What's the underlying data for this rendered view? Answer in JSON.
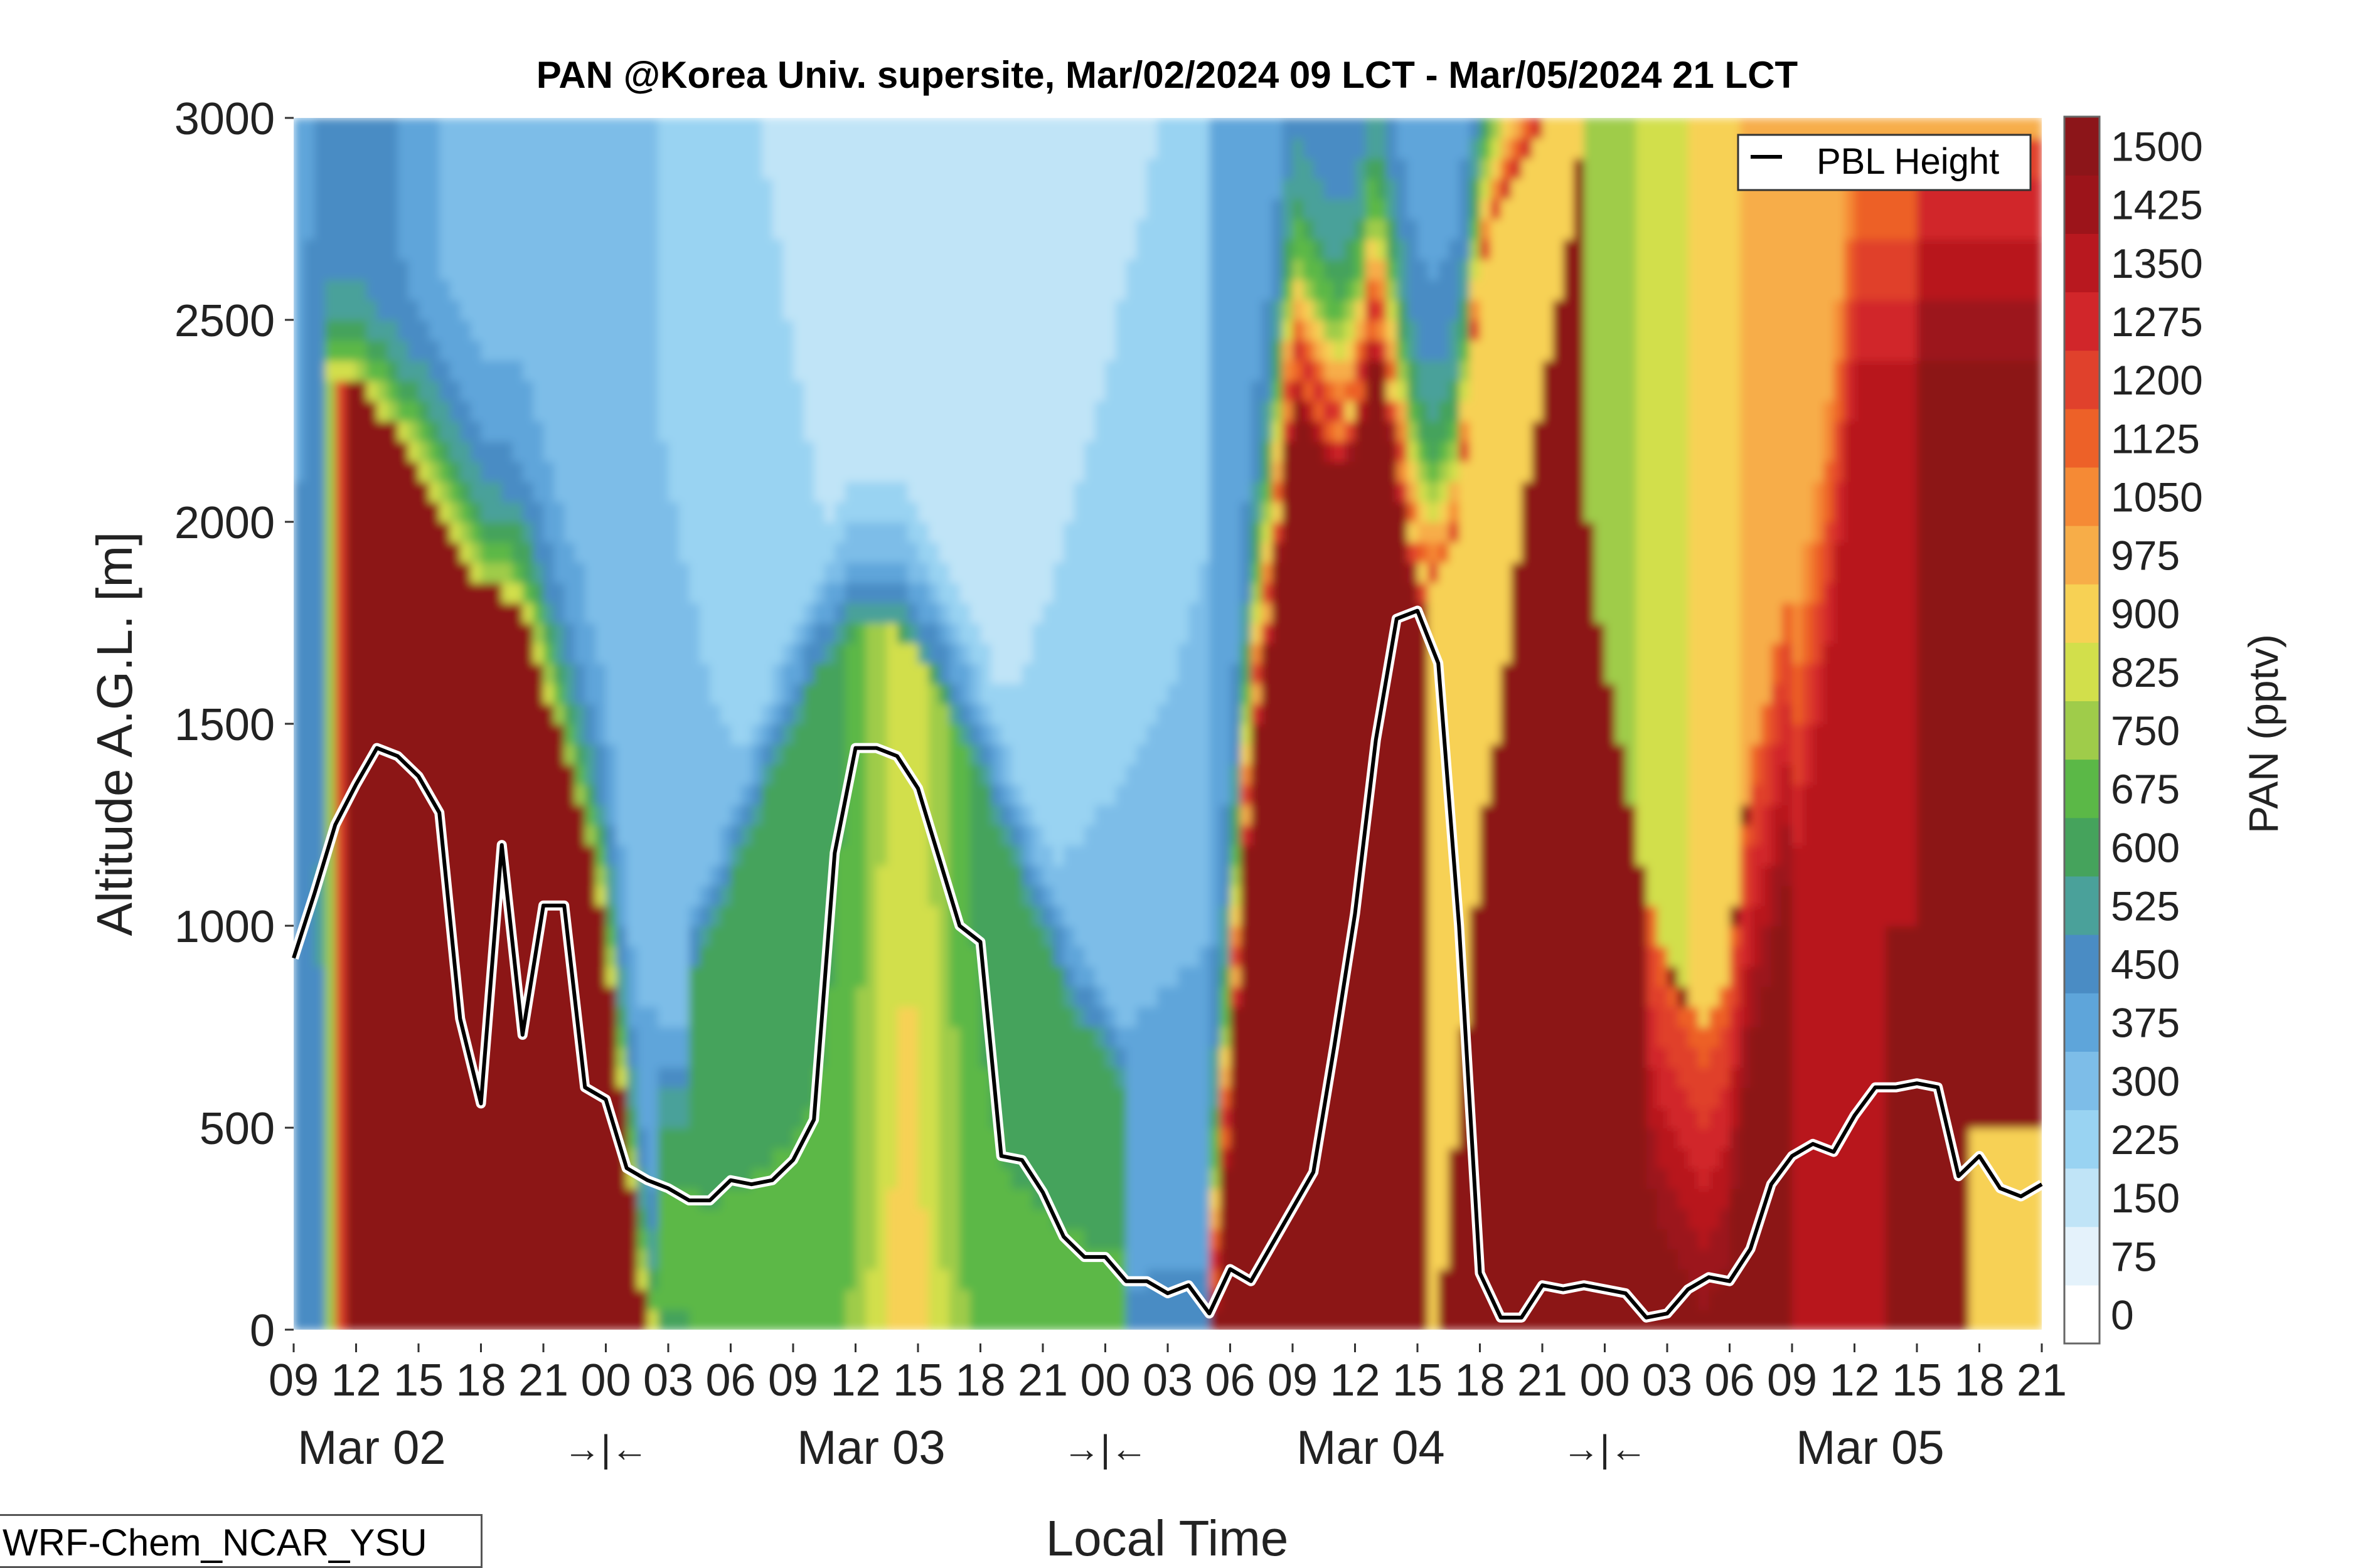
{
  "chart_data": {
    "type": "heatmap",
    "title": "PAN @Korea Univ. supersite, Mar/02/2024 09 LCT - Mar/05/2024 21 LCT",
    "xlabel": "Local Time",
    "ylabel": "Altitude A.G.L. [m]",
    "ylim": [
      0,
      3000
    ],
    "y_ticks": [
      0,
      500,
      1000,
      1500,
      2000,
      2500,
      3000
    ],
    "x_range_hours": [
      0,
      84
    ],
    "x_tick_labels": [
      "09",
      "12",
      "15",
      "18",
      "21",
      "00",
      "03",
      "06",
      "09",
      "12",
      "15",
      "18",
      "21",
      "00",
      "03",
      "06",
      "09",
      "12",
      "15",
      "18",
      "21",
      "00",
      "03",
      "06",
      "09",
      "12",
      "15",
      "18",
      "21"
    ],
    "date_labels": [
      {
        "text": "Mar 02",
        "hour": 3.75
      },
      {
        "text": "Mar 03",
        "hour": 27.75
      },
      {
        "text": "Mar 04",
        "hour": 51.75
      },
      {
        "text": "Mar 05",
        "hour": 75.75
      }
    ],
    "day_separators": [
      {
        "text": "→|←",
        "hour": 15
      },
      {
        "text": "→|←",
        "hour": 39
      },
      {
        "text": "→|←",
        "hour": 63
      }
    ],
    "colorbar": {
      "label": "PAN (pptv)",
      "ticks": [
        0,
        75,
        150,
        225,
        300,
        375,
        450,
        525,
        600,
        675,
        750,
        825,
        900,
        975,
        1050,
        1125,
        1200,
        1275,
        1350,
        1425,
        1500
      ],
      "colors": [
        "#ffffff",
        "#e4f2fb",
        "#c0e4f7",
        "#99d3f2",
        "#7dbde8",
        "#5ea5da",
        "#4a8cc4",
        "#4aa19a",
        "#45a35c",
        "#5bb847",
        "#9fcc4a",
        "#d2df4b",
        "#f7d154",
        "#f7ad48",
        "#f58a35",
        "#ed6128",
        "#e0412c",
        "#d1262a",
        "#b8181f",
        "#9c141a",
        "#8c1519"
      ]
    },
    "legend": {
      "entries": [
        "PBL Height"
      ],
      "position": "top-right"
    },
    "series": [
      {
        "name": "PBL Height",
        "x_hours": [
          0,
          1,
          2,
          3,
          4,
          5,
          6,
          7,
          8,
          9,
          10,
          11,
          12,
          13,
          14,
          15,
          16,
          17,
          18,
          19,
          20,
          21,
          22,
          23,
          24,
          25,
          26,
          27,
          28,
          29,
          30,
          31,
          32,
          33,
          34,
          35,
          36,
          37,
          38,
          39,
          40,
          41,
          42,
          43,
          44,
          45,
          46,
          47,
          48,
          49,
          50,
          51,
          52,
          53,
          54,
          55,
          56,
          57,
          58,
          59,
          60,
          61,
          62,
          63,
          64,
          65,
          66,
          67,
          68,
          69,
          70,
          71,
          72,
          73,
          74,
          75,
          76,
          77,
          78,
          79,
          80,
          81,
          82,
          83,
          84
        ],
        "values": [
          920,
          1080,
          1250,
          1350,
          1440,
          1420,
          1370,
          1280,
          770,
          560,
          1200,
          730,
          1050,
          1050,
          600,
          570,
          400,
          370,
          350,
          320,
          320,
          370,
          360,
          370,
          420,
          520,
          1180,
          1440,
          1440,
          1420,
          1340,
          1170,
          1000,
          960,
          430,
          420,
          340,
          230,
          180,
          180,
          120,
          120,
          90,
          110,
          40,
          150,
          120,
          210,
          300,
          390,
          700,
          1030,
          1460,
          1760,
          1780,
          1650,
          1000,
          140,
          30,
          30,
          110,
          100,
          110,
          100,
          90,
          30,
          40,
          100,
          130,
          120,
          200,
          360,
          430,
          460,
          440,
          530,
          600,
          600,
          610,
          600,
          380,
          430,
          350,
          330,
          360
        ]
      }
    ],
    "field_summary": [
      {
        "period": "Mar 02 09-00",
        "description": "High PAN (>1500) below ~2100 m from ~10 to ~24 LCT; 300-500 background aloft"
      },
      {
        "period": "Mar 03",
        "description": "Moderate values 600-900 near surface; 150-450 aloft"
      },
      {
        "period": "Mar 03 21 - Mar 04 21",
        "description": "Elevated plume >1500 from surface to ~2600 m"
      },
      {
        "period": "Mar 05",
        "description": "Mixed 900-1500 values; highest near surface in afternoon"
      }
    ]
  },
  "model_label": "WRF-Chem_NCAR_YSU"
}
